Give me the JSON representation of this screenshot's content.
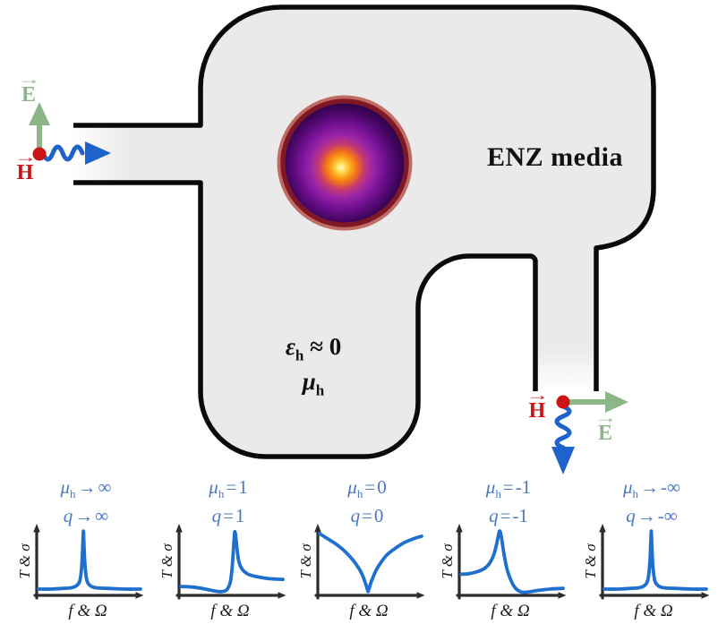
{
  "figure": {
    "media_label": "ENZ media",
    "host_permittivity": {
      "sym": "ε",
      "sub": "h",
      "op": "≈",
      "val": "0"
    },
    "host_permeability": {
      "sym": "μ",
      "sub": "h"
    },
    "vector_arrow": "→",
    "input_port": {
      "e": "E",
      "h": "H"
    },
    "output_port": {
      "e": "E",
      "h": "H"
    }
  },
  "colors": {
    "body_fill": "#eaeaea",
    "outline": "#0a0a0a",
    "wave_blue": "#1e62cc",
    "field_green": "#8cb687",
    "field_red": "#cc1414",
    "curve_blue": "#1f6fce",
    "title_blue": "#4a78c6",
    "axis_dark": "#2d2d2d",
    "particle_rim": "#7e1824",
    "particle_rim_outer": "#b8564d",
    "particle_core": "#fff9c9"
  },
  "chart_data": [
    {
      "type": "line",
      "mu": {
        "sym": "μ",
        "sub": "h",
        "op": "→",
        "val": "∞"
      },
      "q": {
        "sym": "q",
        "op": "→",
        "val": "∞"
      },
      "ylabel": "T & σ",
      "xlabel": "f & Ω",
      "curve_shape": "sharp narrow symmetric resonance peak",
      "points": [
        [
          0,
          0.07
        ],
        [
          0.12,
          0.07
        ],
        [
          0.24,
          0.08
        ],
        [
          0.32,
          0.09
        ],
        [
          0.37,
          0.12
        ],
        [
          0.405,
          0.2
        ],
        [
          0.425,
          0.45
        ],
        [
          0.435,
          0.8
        ],
        [
          0.44,
          0.97
        ],
        [
          0.445,
          0.8
        ],
        [
          0.455,
          0.45
        ],
        [
          0.475,
          0.2
        ],
        [
          0.51,
          0.12
        ],
        [
          0.56,
          0.09
        ],
        [
          0.68,
          0.08
        ],
        [
          0.84,
          0.07
        ],
        [
          1,
          0.07
        ]
      ]
    },
    {
      "type": "line",
      "mu": {
        "sym": "μ",
        "sub": "h",
        "op": "=",
        "val": "1"
      },
      "q": {
        "sym": "q",
        "op": "=",
        "val": "1"
      },
      "ylabel": "T & σ",
      "xlabel": "f & Ω",
      "curve_shape": "Fano resonance: shallow dip then sharp peak with slow right tail",
      "points": [
        [
          0,
          0.11
        ],
        [
          0.12,
          0.1
        ],
        [
          0.24,
          0.07
        ],
        [
          0.33,
          0.04
        ],
        [
          0.4,
          0.03
        ],
        [
          0.45,
          0.06
        ],
        [
          0.485,
          0.18
        ],
        [
          0.505,
          0.45
        ],
        [
          0.52,
          0.8
        ],
        [
          0.53,
          0.96
        ],
        [
          0.545,
          0.78
        ],
        [
          0.565,
          0.52
        ],
        [
          0.6,
          0.38
        ],
        [
          0.66,
          0.3
        ],
        [
          0.75,
          0.26
        ],
        [
          0.87,
          0.23
        ],
        [
          1,
          0.22
        ]
      ]
    },
    {
      "type": "line",
      "mu": {
        "sym": "μ",
        "sub": "h",
        "op": "=",
        "val": "0"
      },
      "q": {
        "sym": "q",
        "op": "=",
        "val": "0"
      },
      "ylabel": "T & σ",
      "xlabel": "f & Ω",
      "curve_shape": "symmetric antiresonance dip to zero",
      "points": [
        [
          0,
          0.93
        ],
        [
          0.07,
          0.86
        ],
        [
          0.15,
          0.78
        ],
        [
          0.23,
          0.68
        ],
        [
          0.3,
          0.57
        ],
        [
          0.36,
          0.45
        ],
        [
          0.41,
          0.32
        ],
        [
          0.445,
          0.18
        ],
        [
          0.465,
          0.08
        ],
        [
          0.475,
          0.03
        ],
        [
          0.485,
          0.08
        ],
        [
          0.51,
          0.2
        ],
        [
          0.55,
          0.35
        ],
        [
          0.6,
          0.48
        ],
        [
          0.66,
          0.6
        ],
        [
          0.74,
          0.7
        ],
        [
          0.83,
          0.79
        ],
        [
          0.92,
          0.85
        ],
        [
          1,
          0.89
        ]
      ]
    },
    {
      "type": "line",
      "mu": {
        "sym": "μ",
        "sub": "h",
        "op": "=",
        "val": "-1"
      },
      "q": {
        "sym": "q",
        "op": "=",
        "val": "-1"
      },
      "ylabel": "T & σ",
      "xlabel": "f & Ω",
      "curve_shape": "Fano resonance mirrored: peak then sharp dip to the right",
      "points": [
        [
          0,
          0.3
        ],
        [
          0.08,
          0.31
        ],
        [
          0.16,
          0.34
        ],
        [
          0.23,
          0.39
        ],
        [
          0.28,
          0.47
        ],
        [
          0.32,
          0.6
        ],
        [
          0.35,
          0.78
        ],
        [
          0.37,
          0.93
        ],
        [
          0.38,
          0.97
        ],
        [
          0.395,
          0.88
        ],
        [
          0.42,
          0.62
        ],
        [
          0.45,
          0.38
        ],
        [
          0.49,
          0.2
        ],
        [
          0.53,
          0.09
        ],
        [
          0.58,
          0.03
        ],
        [
          0.62,
          0.02
        ],
        [
          0.68,
          0.03
        ],
        [
          0.76,
          0.05
        ],
        [
          0.87,
          0.07
        ],
        [
          1,
          0.08
        ]
      ]
    },
    {
      "type": "line",
      "mu": {
        "sym": "μ",
        "sub": "h",
        "op": "→",
        "val": "-∞"
      },
      "q": {
        "sym": "q",
        "op": "→",
        "val": "-∞"
      },
      "ylabel": "T & σ",
      "xlabel": "f & Ω",
      "curve_shape": "sharp narrow symmetric resonance peak",
      "points": [
        [
          0,
          0.07
        ],
        [
          0.14,
          0.07
        ],
        [
          0.26,
          0.08
        ],
        [
          0.34,
          0.09
        ],
        [
          0.39,
          0.12
        ],
        [
          0.425,
          0.2
        ],
        [
          0.445,
          0.45
        ],
        [
          0.455,
          0.8
        ],
        [
          0.46,
          0.97
        ],
        [
          0.465,
          0.8
        ],
        [
          0.475,
          0.45
        ],
        [
          0.495,
          0.2
        ],
        [
          0.53,
          0.12
        ],
        [
          0.58,
          0.09
        ],
        [
          0.7,
          0.08
        ],
        [
          0.86,
          0.07
        ],
        [
          1,
          0.07
        ]
      ]
    }
  ]
}
